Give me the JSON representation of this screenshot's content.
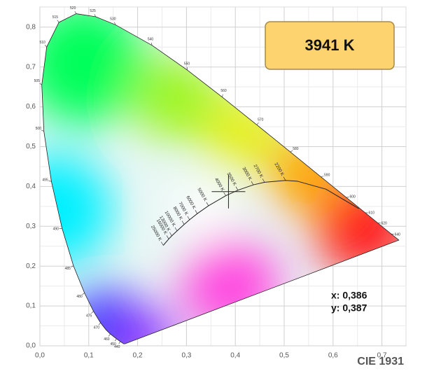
{
  "chart_data": {
    "type": "chromaticity",
    "title": "CIE 1931",
    "annotation": "3941 K",
    "xlim": [
      0,
      0.75
    ],
    "ylim": [
      0,
      0.85
    ],
    "xticks": [
      {
        "value": 0,
        "label": "0,0"
      },
      {
        "value": 0.1,
        "label": "0,1"
      },
      {
        "value": 0.2,
        "label": "0,2"
      },
      {
        "value": 0.3,
        "label": "0,3"
      },
      {
        "value": 0.4,
        "label": "0,4"
      },
      {
        "value": 0.5,
        "label": "0,5"
      },
      {
        "value": 0.6,
        "label": "0,6"
      },
      {
        "value": 0.7,
        "label": "0,7"
      }
    ],
    "yticks": [
      {
        "value": 0,
        "label": "0,0"
      },
      {
        "value": 0.1,
        "label": "0,1"
      },
      {
        "value": 0.2,
        "label": "0,2"
      },
      {
        "value": 0.3,
        "label": "0,3"
      },
      {
        "value": 0.4,
        "label": "0,4"
      },
      {
        "value": 0.5,
        "label": "0,5"
      },
      {
        "value": 0.6,
        "label": "0,6"
      },
      {
        "value": 0.7,
        "label": "0,7"
      },
      {
        "value": 0.8,
        "label": "0,8"
      }
    ],
    "grid": true,
    "series": [
      {
        "x": [
          0.1741,
          0.1714,
          0.1644,
          0.1566,
          0.144,
          0.1355,
          0.1241,
          0.1096,
          0.0913,
          0.0687,
          0.0454,
          0.0235,
          0.0082,
          0.0039,
          0.0139,
          0.0389,
          0.0743,
          0.1142,
          0.1547,
          0.2296,
          0.3016,
          0.3731,
          0.4441,
          0.5125,
          0.5752,
          0.627,
          0.6658,
          0.6915,
          0.719,
          0.7347
        ],
        "y": [
          0.005,
          0.0051,
          0.0109,
          0.0177,
          0.0297,
          0.0399,
          0.0578,
          0.0868,
          0.1327,
          0.2007,
          0.295,
          0.4127,
          0.5384,
          0.6548,
          0.7502,
          0.812,
          0.8338,
          0.8262,
          0.8059,
          0.7543,
          0.6923,
          0.6245,
          0.5547,
          0.4866,
          0.4242,
          0.3725,
          0.334,
          0.3083,
          0.2809,
          0.2653
        ],
        "labels": [
          null,
          null,
          "440",
          "450",
          "460",
          null,
          "470",
          "475",
          "480",
          "485",
          "490",
          "495",
          "500",
          "505",
          "510",
          "515",
          "520",
          "525",
          "530",
          "540",
          "550",
          "560",
          "570",
          "580",
          "590",
          "600",
          "610",
          "620",
          "640",
          null
        ],
        "color": "#222222"
      },
      {
        "x": [
          0.6528,
          0.5857,
          0.5267,
          0.5028,
          0.4599,
          0.4369,
          0.4053,
          0.3805,
          0.3451,
          0.3221,
          0.3064,
          0.2952,
          0.2807,
          0.2699,
          0.2637,
          0.2525
        ],
        "y": [
          0.3444,
          0.3931,
          0.4133,
          0.4153,
          0.4106,
          0.4041,
          0.3907,
          0.3768,
          0.3516,
          0.3318,
          0.3166,
          0.3048,
          0.2884,
          0.2761,
          0.2681,
          0.2522
        ],
        "labels": [
          null,
          null,
          null,
          "2200 K",
          "2700 K",
          "3000 K",
          "3500 K",
          "4000 K",
          "5000 K",
          "6000 K",
          "7000 K",
          "8000 K",
          "10000 K",
          "13000 K",
          "16000 K",
          "25000 K"
        ],
        "color": "#222222"
      }
    ],
    "point": {
      "x": 0.386,
      "y": 0.387,
      "x_label": "x: 0,386",
      "y_label": "y: 0,387"
    }
  }
}
